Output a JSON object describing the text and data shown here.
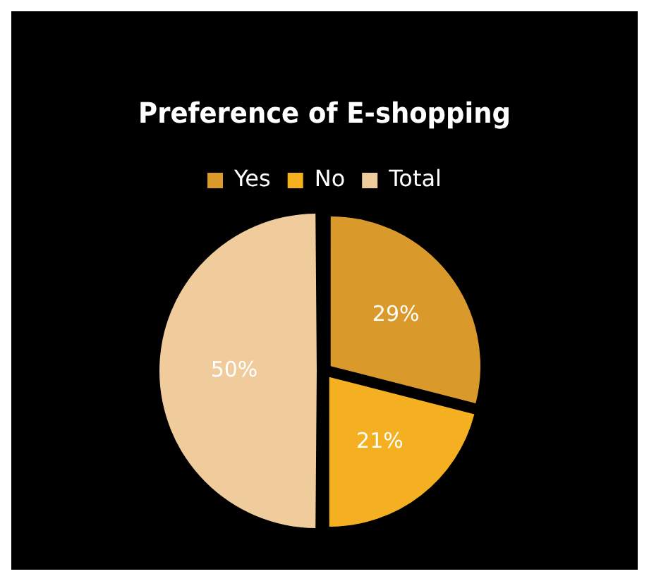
{
  "chart_data": {
    "type": "pie",
    "title": "Preference of E-shopping",
    "categories": [
      "Yes",
      "No",
      "Total"
    ],
    "values": [
      29,
      21,
      50
    ],
    "colors": [
      "#d99a2b",
      "#f5b021",
      "#f0cc9c"
    ],
    "value_labels": [
      "29%",
      "21%",
      "50%"
    ],
    "legend": "top"
  }
}
